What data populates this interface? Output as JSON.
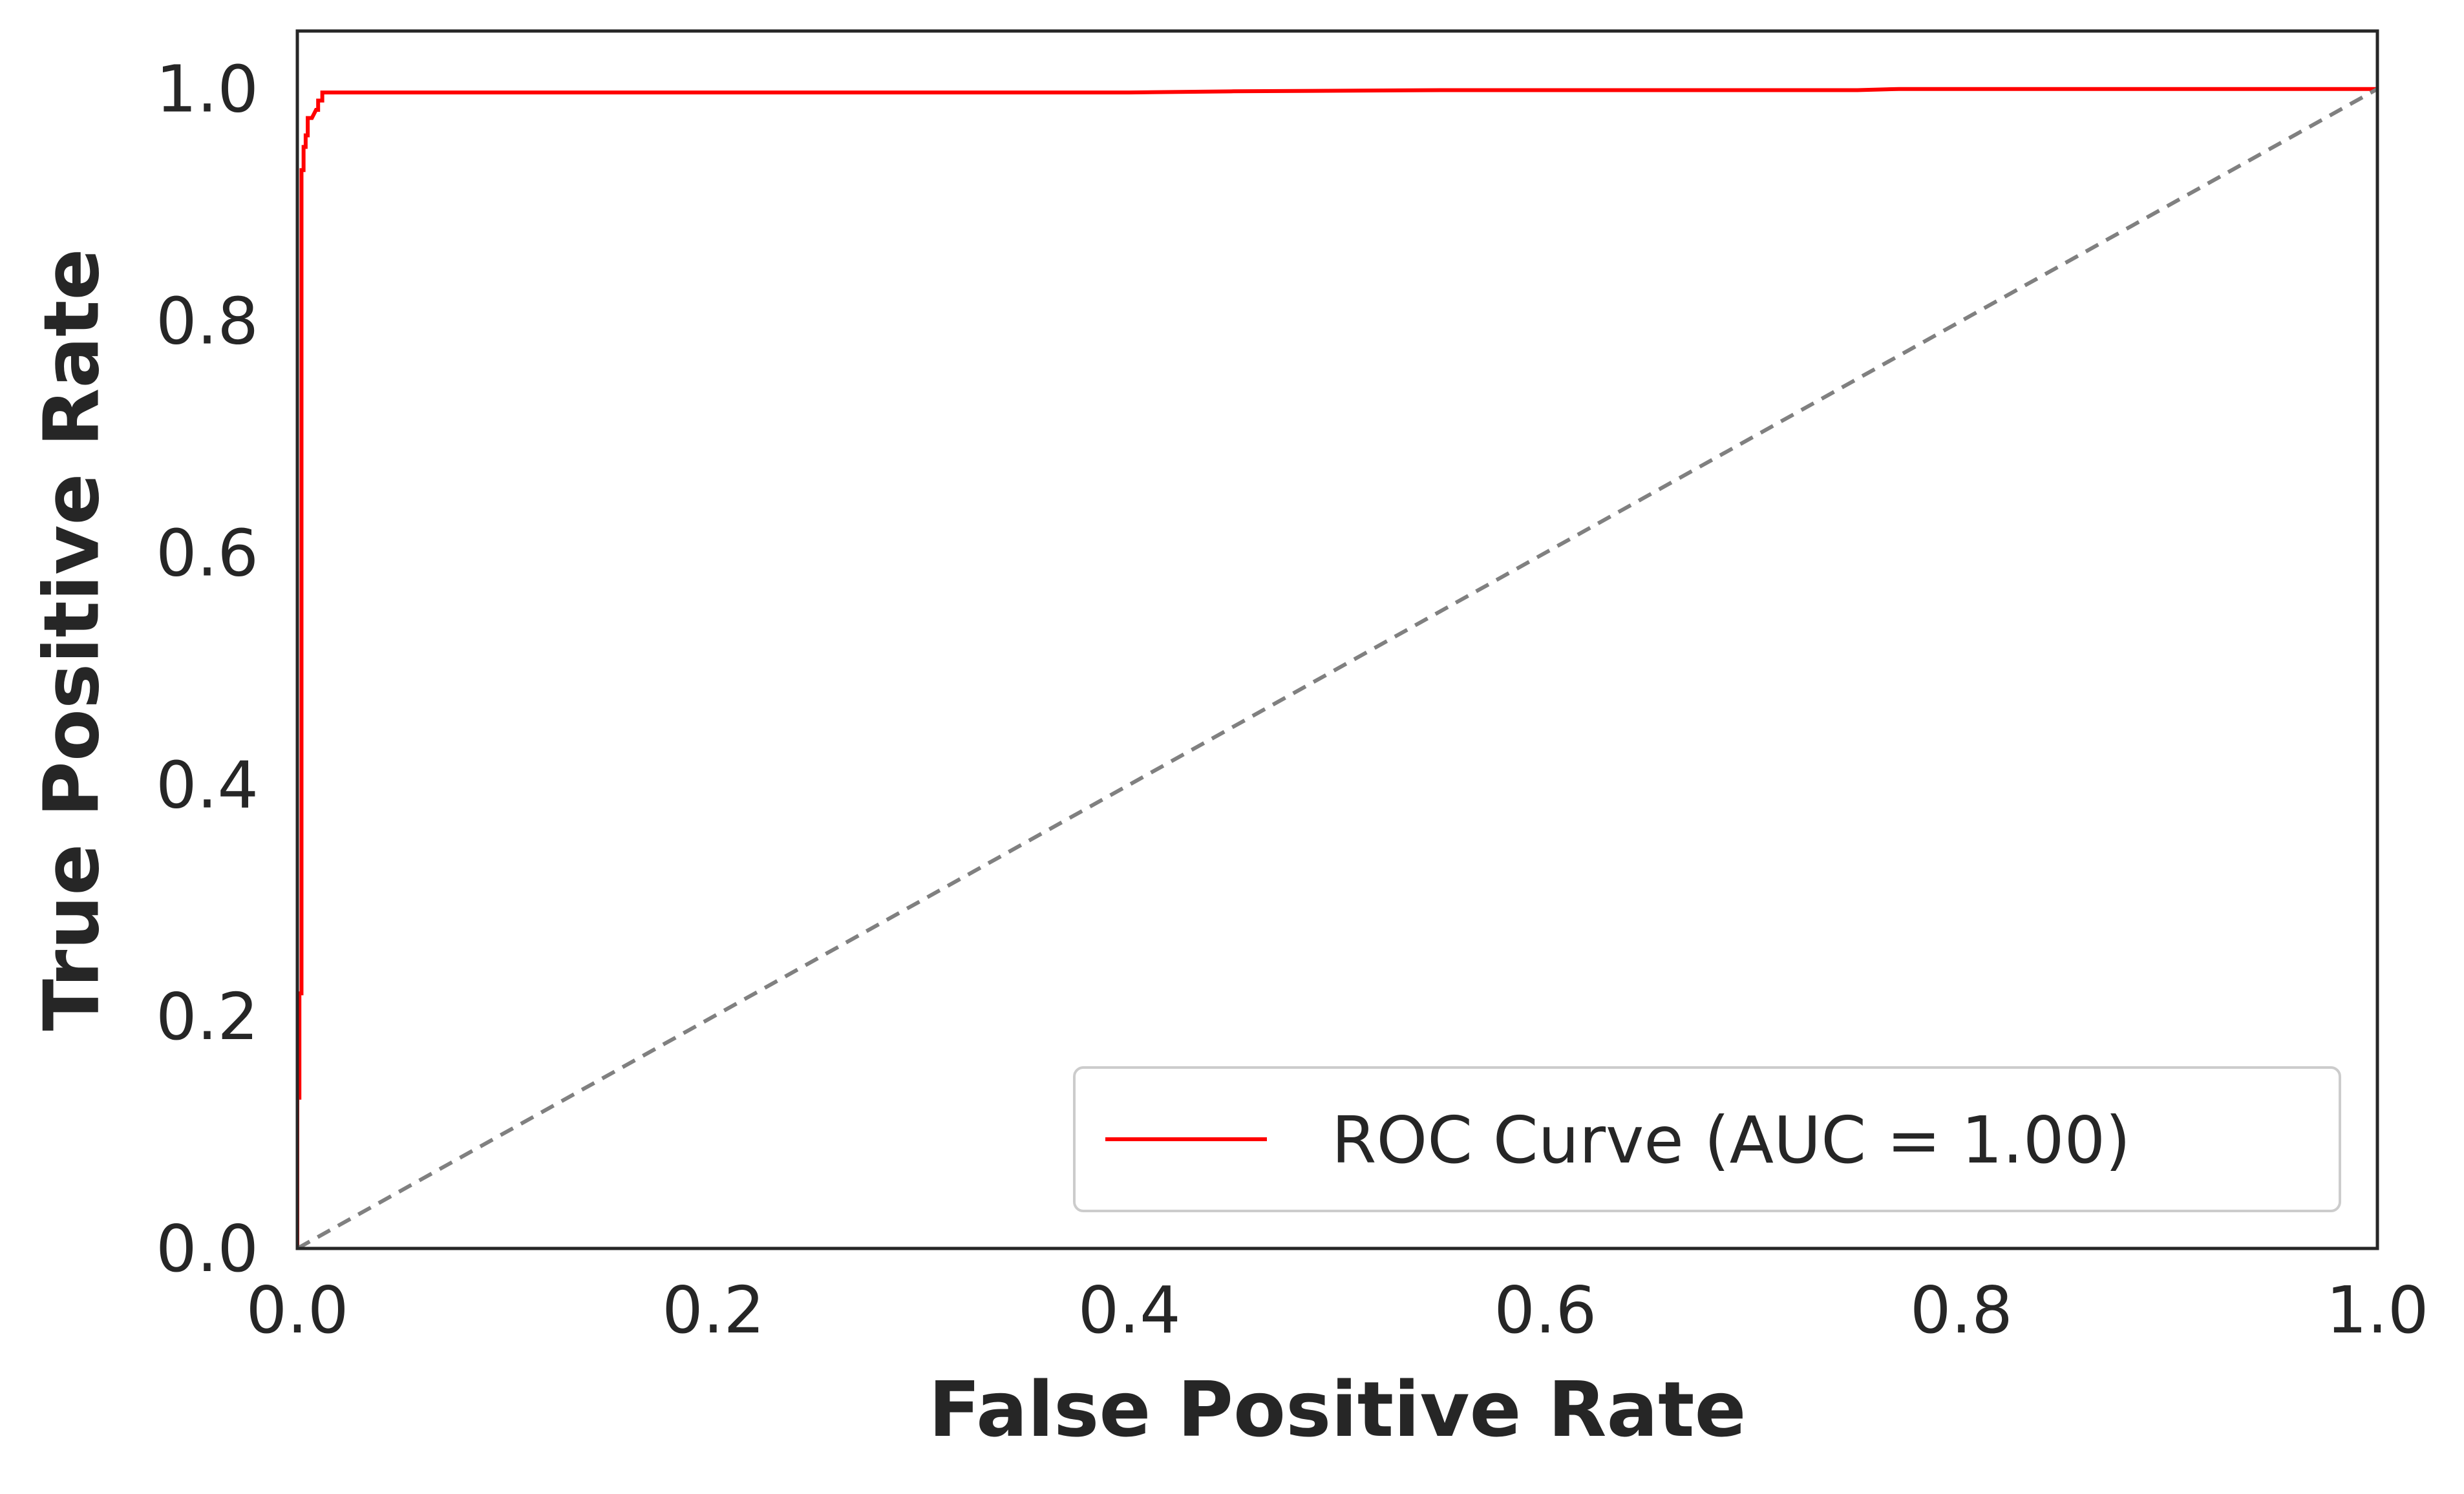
{
  "chart_data": {
    "type": "line",
    "title": "",
    "xlabel": "False Positive Rate",
    "ylabel": "True Positive Rate",
    "xlim": [
      0.0,
      1.0
    ],
    "ylim": [
      0.0,
      1.05
    ],
    "xticks": [
      0.0,
      0.2,
      0.4,
      0.6,
      0.8,
      1.0
    ],
    "yticks": [
      0.0,
      0.2,
      0.4,
      0.6,
      0.8,
      1.0
    ],
    "xtick_labels": [
      "0.0",
      "0.2",
      "0.4",
      "0.6",
      "0.8",
      "1.0"
    ],
    "ytick_labels": [
      "0.0",
      "0.2",
      "0.4",
      "0.6",
      "0.8",
      "1.0"
    ],
    "grid": false,
    "legend_position": "lower-right",
    "series": [
      {
        "name": "ROC Curve (AUC = 1.00)",
        "color": "#ff0000",
        "style": "solid",
        "x": [
          0.0,
          0.0,
          0.001,
          0.001,
          0.002,
          0.002,
          0.003,
          0.003,
          0.004,
          0.004,
          0.005,
          0.005,
          0.007,
          0.009,
          0.01,
          0.01,
          0.012,
          0.012,
          0.1,
          0.4,
          0.45,
          0.55,
          0.75,
          0.77,
          1.0
        ],
        "y": [
          0.0,
          0.13,
          0.13,
          0.22,
          0.22,
          0.93,
          0.93,
          0.95,
          0.95,
          0.96,
          0.96,
          0.975,
          0.975,
          0.982,
          0.982,
          0.99,
          0.99,
          0.997,
          0.997,
          0.997,
          0.998,
          0.999,
          0.999,
          1.0,
          1.0
        ]
      },
      {
        "name": "",
        "color": "#808080",
        "style": "dashed",
        "x": [
          0.0,
          1.0
        ],
        "y": [
          0.0,
          1.0
        ]
      }
    ],
    "legend_entries": [
      "ROC Curve (AUC = 1.00)"
    ]
  }
}
